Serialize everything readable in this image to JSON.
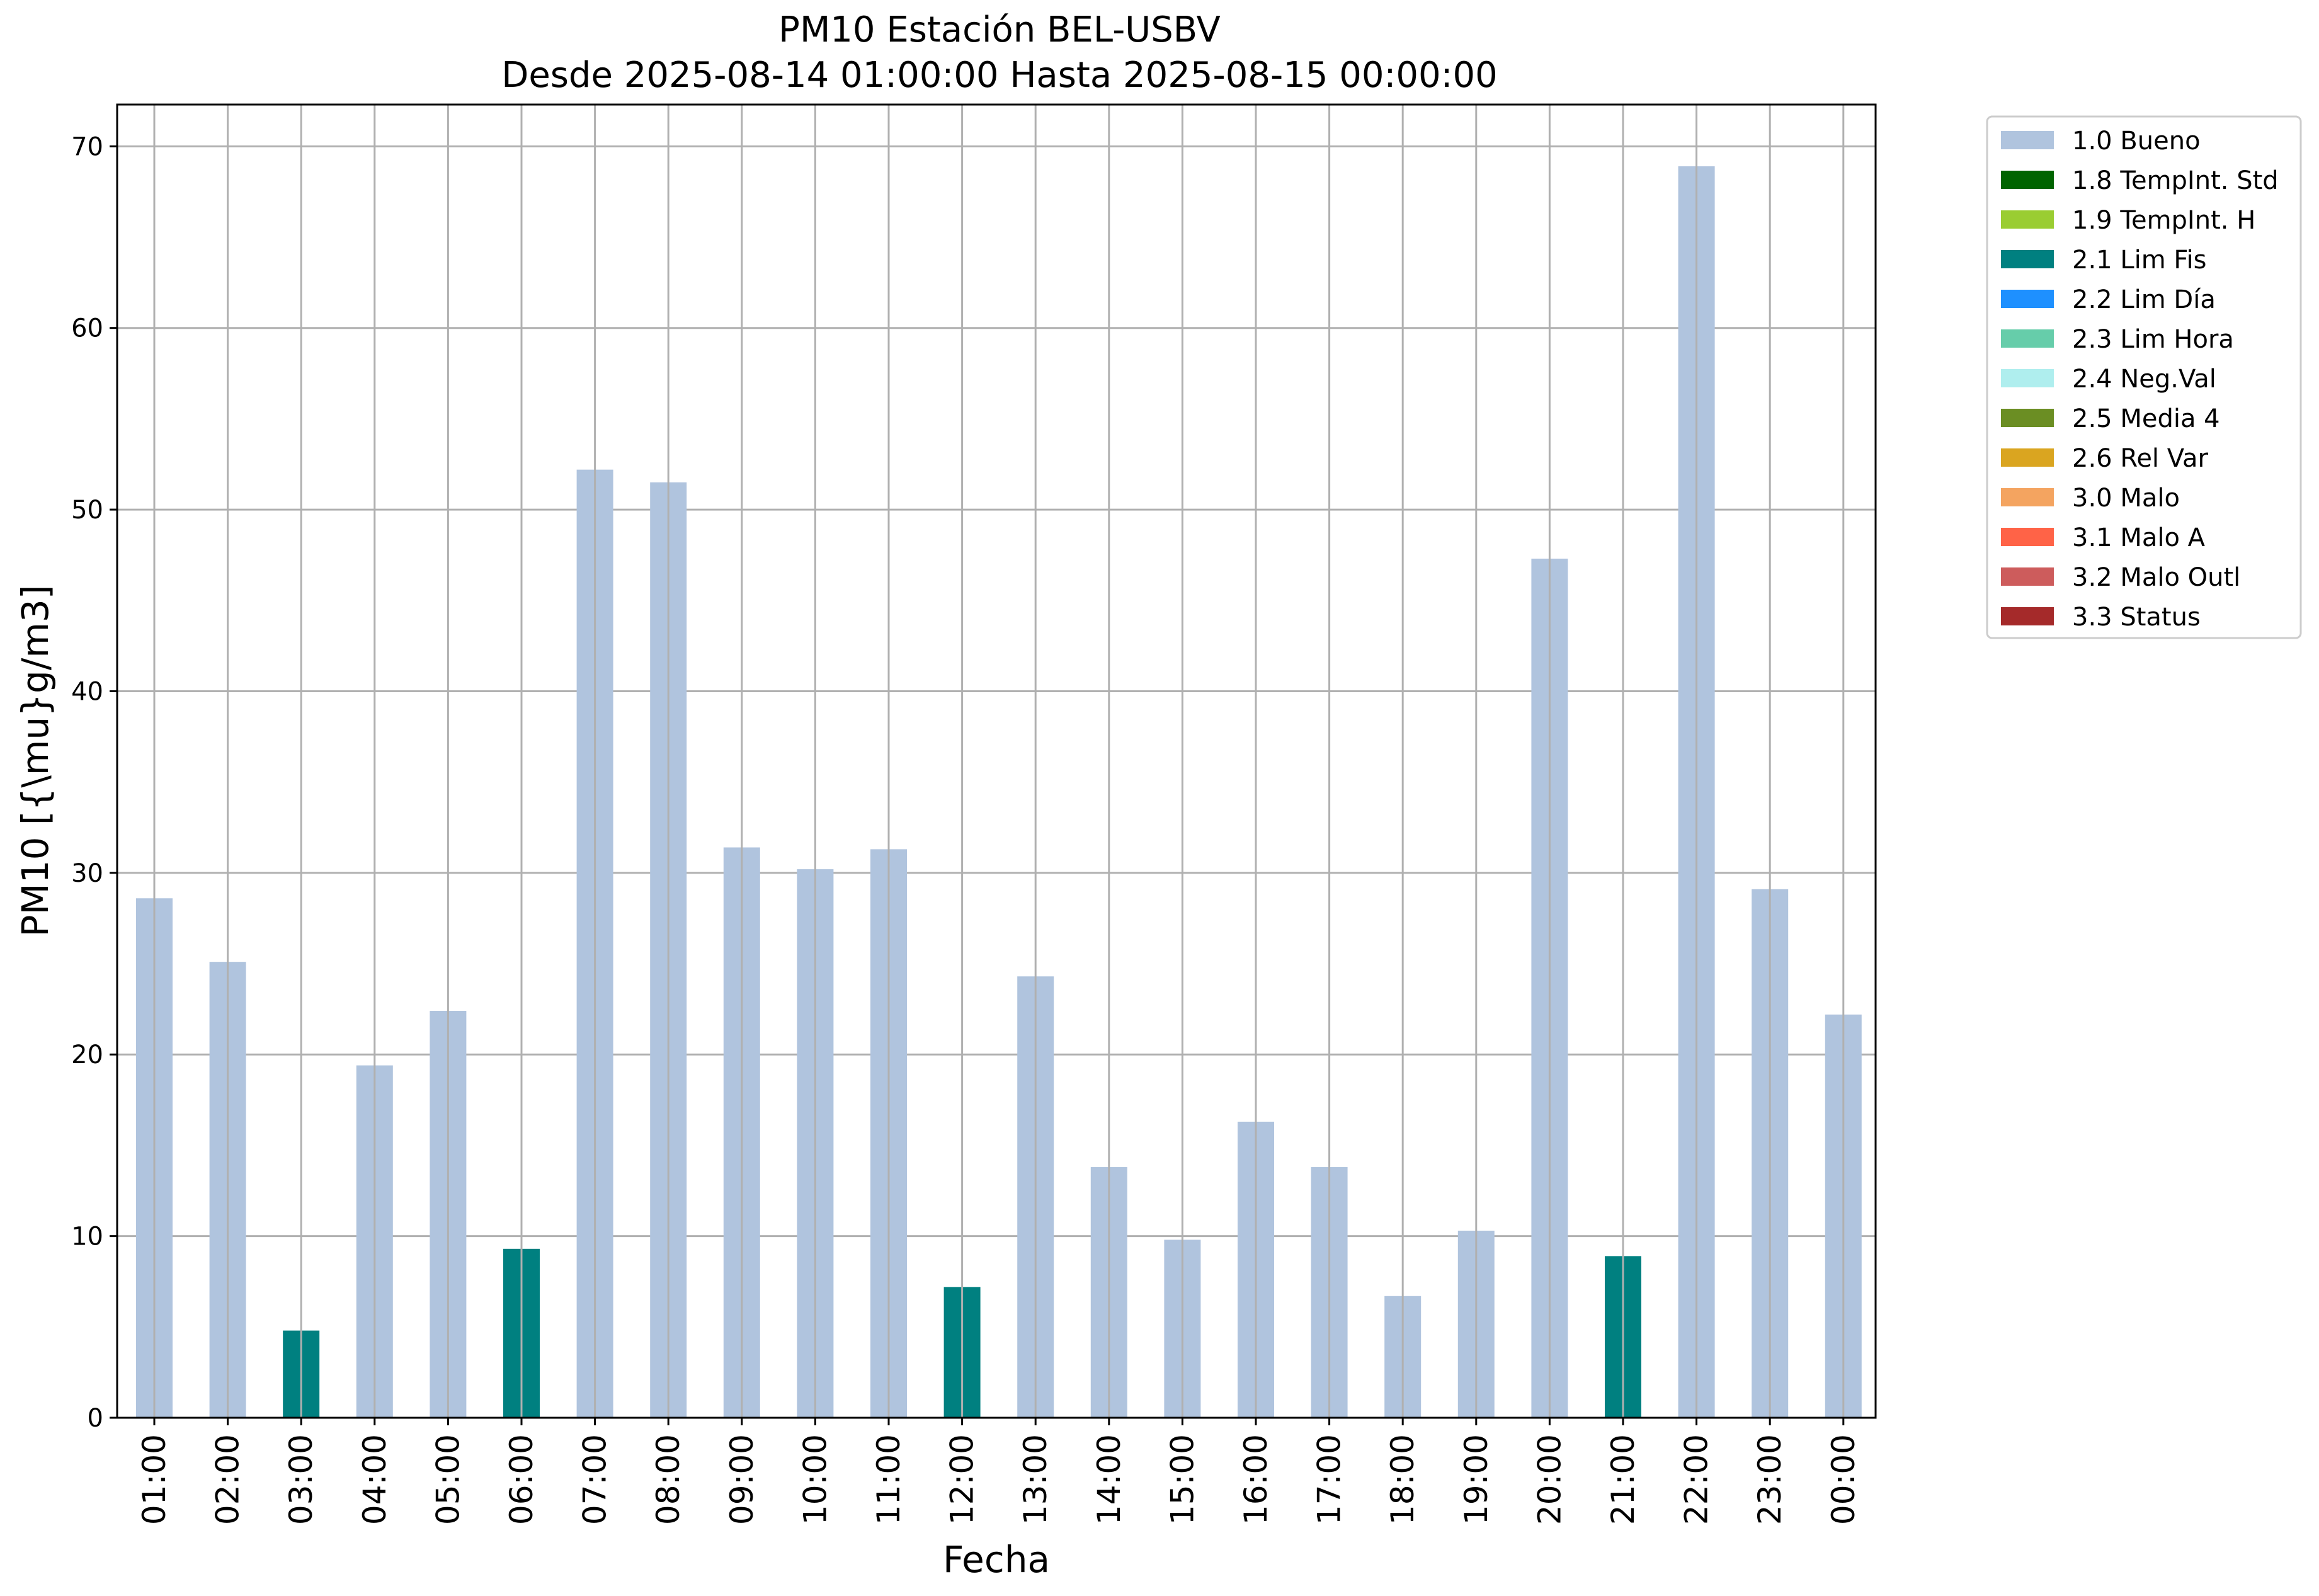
{
  "chart_data": {
    "type": "bar",
    "title_line1": "PM10 Estación BEL-USBV",
    "title_line2": "Desde 2025-08-14 01:00:00 Hasta 2025-08-15 00:00:00",
    "xlabel": "Fecha",
    "ylabel": "PM10 [{\\mu}g/m3]",
    "ylim": [
      0,
      72.3
    ],
    "yticks": [
      0,
      10,
      20,
      30,
      40,
      50,
      60,
      70
    ],
    "grid": true,
    "legend_position": "outside-top-right",
    "categories": [
      "01:00",
      "02:00",
      "03:00",
      "04:00",
      "05:00",
      "06:00",
      "07:00",
      "08:00",
      "09:00",
      "10:00",
      "11:00",
      "12:00",
      "13:00",
      "14:00",
      "15:00",
      "16:00",
      "17:00",
      "18:00",
      "19:00",
      "20:00",
      "21:00",
      "22:00",
      "23:00",
      "00:00"
    ],
    "values": [
      28.6,
      25.1,
      4.8,
      19.4,
      22.4,
      9.3,
      52.2,
      51.5,
      31.4,
      30.2,
      31.3,
      7.2,
      24.3,
      13.8,
      9.8,
      16.3,
      13.8,
      6.7,
      10.3,
      47.3,
      8.9,
      68.9,
      29.1,
      22.2
    ],
    "flags": [
      "1.0 Bueno",
      "1.0 Bueno",
      "2.1 Lim Fis",
      "1.0 Bueno",
      "1.0 Bueno",
      "2.1 Lim Fis",
      "1.0 Bueno",
      "1.0 Bueno",
      "1.0 Bueno",
      "1.0 Bueno",
      "1.0 Bueno",
      "2.1 Lim Fis",
      "1.0 Bueno",
      "1.0 Bueno",
      "1.0 Bueno",
      "1.0 Bueno",
      "1.0 Bueno",
      "1.0 Bueno",
      "1.0 Bueno",
      "1.0 Bueno",
      "2.1 Lim Fis",
      "1.0 Bueno",
      "1.0 Bueno",
      "1.0 Bueno"
    ],
    "legend": [
      {
        "label": "1.0 Bueno",
        "color": "#b0c4de"
      },
      {
        "label": "1.8 TempInt. Std",
        "color": "#006400"
      },
      {
        "label": "1.9 TempInt. H",
        "color": "#9acd32"
      },
      {
        "label": "2.1 Lim Fis",
        "color": "#008080"
      },
      {
        "label": "2.2 Lim Día",
        "color": "#1e90ff"
      },
      {
        "label": "2.3 Lim Hora",
        "color": "#66cdaa"
      },
      {
        "label": "2.4 Neg.Val",
        "color": "#afeeee"
      },
      {
        "label": "2.5 Media 4",
        "color": "#6b8e23"
      },
      {
        "label": "2.6 Rel Var",
        "color": "#daa520"
      },
      {
        "label": "3.0 Malo",
        "color": "#f4a460"
      },
      {
        "label": "3.1 Malo A",
        "color": "#ff6347"
      },
      {
        "label": "3.2 Malo Outl",
        "color": "#cd5c5c"
      },
      {
        "label": "3.3 Status",
        "color": "#a52a2a"
      }
    ]
  }
}
